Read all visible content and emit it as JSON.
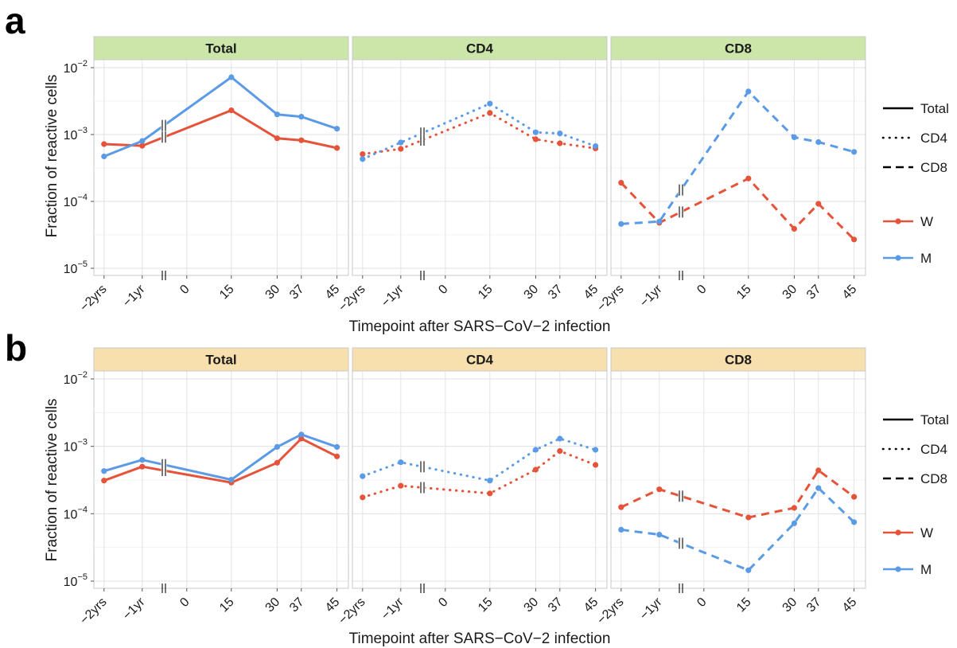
{
  "chart_data": [
    {
      "panel": "a",
      "type": "line",
      "facets": [
        "Total",
        "CD4",
        "CD8"
      ],
      "strip_color": "#cce6a9",
      "xlabel": "Timepoint after SARS−CoV−2 infection",
      "ylabel": "Fraction of reactive cells",
      "x_ticks": [
        "−2yrs",
        "−1yr",
        "0",
        "15",
        "30",
        "37",
        "45"
      ],
      "y_scale": "log10",
      "ylim": [
        1e-05,
        0.01
      ],
      "y_ticks": [
        {
          "base": "10",
          "exp": "−5"
        },
        {
          "base": "10",
          "exp": "−4"
        },
        {
          "base": "10",
          "exp": "−3"
        },
        {
          "base": "10",
          "exp": "−2"
        }
      ],
      "series": [
        {
          "facet": "Total",
          "name": "W",
          "values": [
            0.00072,
            0.00068,
            0.0023,
            0.00088,
            0.00082,
            0.00063
          ]
        },
        {
          "facet": "Total",
          "name": "M",
          "values": [
            0.00047,
            0.0008,
            0.0072,
            0.002,
            0.00185,
            0.00122
          ]
        },
        {
          "facet": "CD4",
          "name": "W",
          "values": [
            0.00051,
            0.00061,
            0.0021,
            0.00085,
            0.00074,
            0.00062
          ]
        },
        {
          "facet": "CD4",
          "name": "M",
          "values": [
            0.00043,
            0.00076,
            0.0029,
            0.00108,
            0.00104,
            0.00067
          ]
        },
        {
          "facet": "CD8",
          "name": "W",
          "values": [
            0.00019,
            4.8e-05,
            0.00022,
            3.9e-05,
            9.2e-05,
            2.7e-05
          ]
        },
        {
          "facet": "CD8",
          "name": "M",
          "values": [
            4.6e-05,
            5e-05,
            0.0044,
            0.00091,
            0.00077,
            0.00055
          ]
        }
      ]
    },
    {
      "panel": "b",
      "type": "line",
      "facets": [
        "Total",
        "CD4",
        "CD8"
      ],
      "strip_color": "#f8dfae",
      "xlabel": "Timepoint after SARS−CoV−2 infection",
      "ylabel": "Fraction of reactive cells",
      "x_ticks": [
        "−2yrs",
        "−1yr",
        "0",
        "15",
        "30",
        "37",
        "45"
      ],
      "y_scale": "log10",
      "ylim": [
        1e-05,
        0.01
      ],
      "y_ticks": [
        {
          "base": "10",
          "exp": "−5"
        },
        {
          "base": "10",
          "exp": "−4"
        },
        {
          "base": "10",
          "exp": "−3"
        },
        {
          "base": "10",
          "exp": "−2"
        }
      ],
      "series": [
        {
          "facet": "Total",
          "name": "W",
          "values": [
            0.00031,
            0.0005,
            0.00029,
            0.00057,
            0.0013,
            0.00071
          ]
        },
        {
          "facet": "Total",
          "name": "M",
          "values": [
            0.00043,
            0.00063,
            0.00032,
            0.00098,
            0.0015,
            0.00098
          ]
        },
        {
          "facet": "CD4",
          "name": "W",
          "values": [
            0.000175,
            0.00026,
            0.0002,
            0.00045,
            0.00085,
            0.00053
          ]
        },
        {
          "facet": "CD4",
          "name": "M",
          "values": [
            0.00036,
            0.00058,
            0.00031,
            0.00089,
            0.0013,
            0.00089
          ]
        },
        {
          "facet": "CD8",
          "name": "W",
          "values": [
            0.000125,
            0.00023,
            8.8e-05,
            0.000122,
            0.00044,
            0.000178
          ]
        },
        {
          "facet": "CD8",
          "name": "M",
          "values": [
            5.8e-05,
            4.9e-05,
            1.45e-05,
            7.2e-05,
            0.00024,
            7.5e-05
          ]
        }
      ]
    }
  ],
  "legend": {
    "linetype": [
      {
        "label": "Total",
        "style": "solid"
      },
      {
        "label": "CD4",
        "style": "dotted"
      },
      {
        "label": "CD8",
        "style": "dashed"
      }
    ],
    "color": [
      {
        "label": "W",
        "color": "#e5533a"
      },
      {
        "label": "M",
        "color": "#5b9be6"
      }
    ]
  }
}
